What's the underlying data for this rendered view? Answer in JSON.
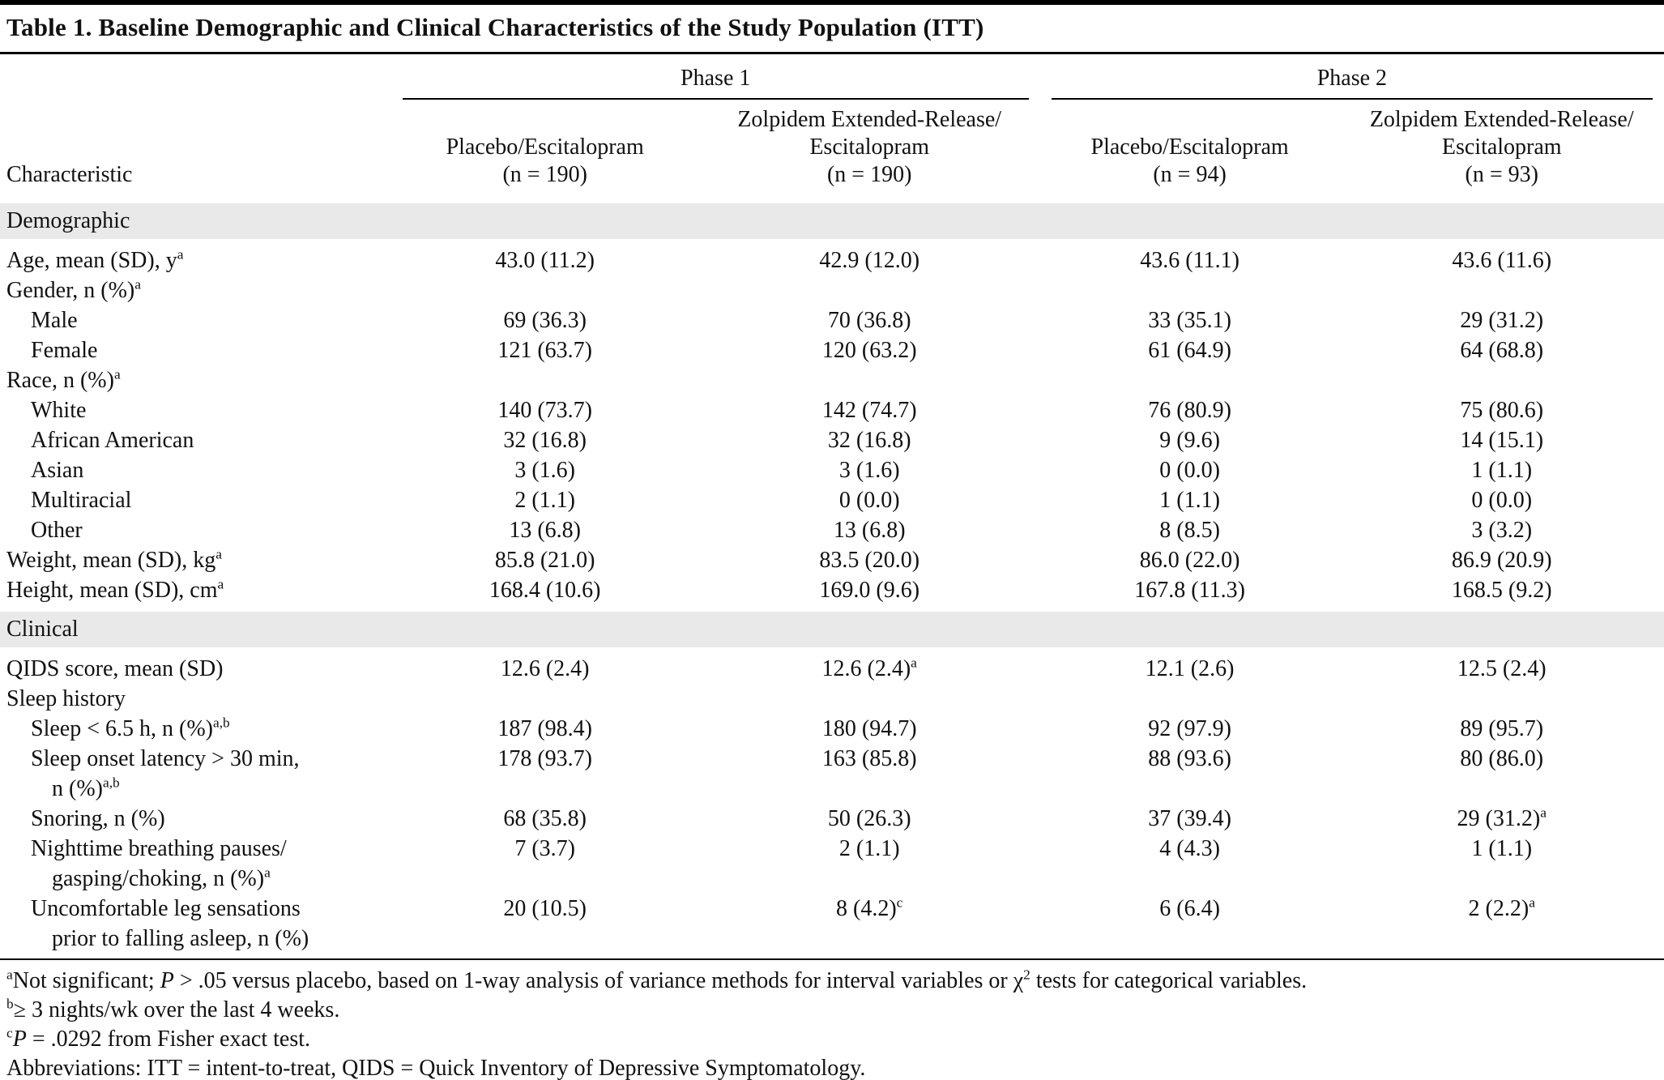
{
  "title": "Table 1. Baseline Demographic and Clinical Characteristics of the Study Population (ITT)",
  "table": {
    "phase_headers": [
      "Phase 1",
      "Phase 2"
    ],
    "characteristic_header": "Characteristic",
    "column_headers": [
      "Placebo/Escitalopram\n(n = 190)",
      "Zolpidem Extended-Release/\nEscitalopram\n(n = 190)",
      "Placebo/Escitalopram\n(n = 94)",
      "Zolpidem Extended-Release/\nEscitalopram\n(n = 93)"
    ],
    "rows": [
      {
        "type": "section",
        "label": "Demographic"
      },
      {
        "type": "data",
        "indent": 0,
        "label": "Age, mean (SD), y^{a}",
        "values": [
          "43.0 (11.2)",
          "42.9 (12.0)",
          "43.6 (11.1)",
          "43.6 (11.6)"
        ]
      },
      {
        "type": "data",
        "indent": 0,
        "label": "Gender, n (%)^{a}",
        "values": [
          "",
          "",
          "",
          ""
        ]
      },
      {
        "type": "data",
        "indent": 1,
        "label": "Male",
        "values": [
          "69 (36.3)",
          "70 (36.8)",
          "33 (35.1)",
          "29 (31.2)"
        ]
      },
      {
        "type": "data",
        "indent": 1,
        "label": "Female",
        "values": [
          "121 (63.7)",
          "120 (63.2)",
          "61 (64.9)",
          "64 (68.8)"
        ]
      },
      {
        "type": "data",
        "indent": 0,
        "label": "Race, n (%)^{a}",
        "values": [
          "",
          "",
          "",
          ""
        ]
      },
      {
        "type": "data",
        "indent": 1,
        "label": "White",
        "values": [
          "140 (73.7)",
          "142 (74.7)",
          "76 (80.9)",
          "75 (80.6)"
        ]
      },
      {
        "type": "data",
        "indent": 1,
        "label": "African American",
        "values": [
          "32 (16.8)",
          "32 (16.8)",
          "9 (9.6)",
          "14 (15.1)"
        ]
      },
      {
        "type": "data",
        "indent": 1,
        "label": "Asian",
        "values": [
          "3 (1.6)",
          "3 (1.6)",
          "0 (0.0)",
          "1 (1.1)"
        ]
      },
      {
        "type": "data",
        "indent": 1,
        "label": "Multiracial",
        "values": [
          "2 (1.1)",
          "0 (0.0)",
          "1 (1.1)",
          "0 (0.0)"
        ]
      },
      {
        "type": "data",
        "indent": 1,
        "label": "Other",
        "values": [
          "13 (6.8)",
          "13 (6.8)",
          "8 (8.5)",
          "3 (3.2)"
        ]
      },
      {
        "type": "data",
        "indent": 0,
        "label": "Weight, mean (SD), kg^{a}",
        "values": [
          "85.8 (21.0)",
          "83.5 (20.0)",
          "86.0 (22.0)",
          "86.9 (20.9)"
        ]
      },
      {
        "type": "data",
        "indent": 0,
        "label": "Height, mean (SD), cm^{a}",
        "values": [
          "168.4 (10.6)",
          "169.0 (9.6)",
          "167.8 (11.3)",
          "168.5 (9.2)"
        ]
      },
      {
        "type": "section",
        "label": "Clinical"
      },
      {
        "type": "data",
        "indent": 0,
        "label": "QIDS score, mean (SD)",
        "values": [
          "12.6 (2.4)",
          "12.6 (2.4)^{a}",
          "12.1 (2.6)",
          "12.5 (2.4)"
        ]
      },
      {
        "type": "data",
        "indent": 0,
        "label": "Sleep history",
        "values": [
          "",
          "",
          "",
          ""
        ]
      },
      {
        "type": "data",
        "indent": 1,
        "label": "Sleep < 6.5 h, n (%)^{a,b}",
        "values": [
          "187 (98.4)",
          "180 (94.7)",
          "92 (97.9)",
          "89 (95.7)"
        ]
      },
      {
        "type": "data",
        "indent": 1,
        "label": "Sleep onset latency > 30 min,\nn (%)^{a,b}",
        "values": [
          "178 (93.7)",
          "163 (85.8)",
          "88 (93.6)",
          "80 (86.0)"
        ]
      },
      {
        "type": "data",
        "indent": 1,
        "label": "Snoring, n (%)",
        "values": [
          "68 (35.8)",
          "50 (26.3)",
          "37 (39.4)",
          "29 (31.2)^{a}"
        ]
      },
      {
        "type": "data",
        "indent": 1,
        "label": "Nighttime breathing pauses/\ngasping/choking, n (%)^{a}",
        "values": [
          "7 (3.7)",
          "2 (1.1)",
          "4 (4.3)",
          "1 (1.1)"
        ]
      },
      {
        "type": "data",
        "indent": 1,
        "label": "Uncomfortable leg sensations\nprior to falling asleep, n (%)",
        "values": [
          "20 (10.5)",
          "8 (4.2)^{c}",
          "6 (6.4)",
          "2 (2.2)^{a}"
        ]
      }
    ]
  },
  "footnotes": [
    "^{a}Not significant; *P* > .05 versus placebo, based on 1-way analysis of variance methods for interval variables or χ^{2} tests for categorical variables.",
    "^{b}≥ 3 nights/wk over the last 4 weeks.",
    "^{c}*P* = .0292 from Fisher exact test.",
    "Abbreviations: ITT = intent-to-treat, QIDS = Quick Inventory of Depressive Symptomatology."
  ]
}
